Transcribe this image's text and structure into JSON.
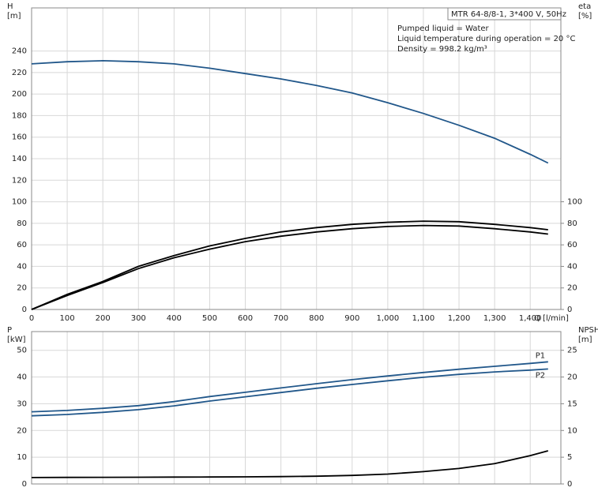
{
  "chart_data": [
    {
      "type": "line",
      "info_box": "MTR 64-8/8-1, 3*400 V, 50Hz",
      "notes": [
        "Pumped liquid = Water",
        "Liquid temperature during operation = 20 °C",
        "Density = 998.2 kg/m³"
      ],
      "y_label": [
        "H",
        "[m]"
      ],
      "y2_label": [
        "eta",
        "[%]"
      ],
      "x_label": "Q [l/min]",
      "x": [
        0,
        100,
        200,
        300,
        400,
        500,
        600,
        700,
        800,
        900,
        1000,
        1100,
        1200,
        1300,
        1400,
        1450
      ],
      "xlim": [
        0,
        1486
      ],
      "xticks": [
        0,
        100,
        200,
        300,
        400,
        500,
        600,
        700,
        800,
        900,
        {
          "value": 1000,
          "label": "1,000"
        },
        {
          "value": 1100,
          "label": "1,100"
        },
        {
          "value": 1200,
          "label": "1,200"
        },
        {
          "value": 1300,
          "label": "1,300"
        },
        {
          "value": 1400,
          "label": "1,400"
        }
      ],
      "ylim": [
        0,
        280
      ],
      "yticks": [
        0,
        20,
        40,
        60,
        80,
        100,
        120,
        140,
        160,
        180,
        200,
        220,
        240
      ],
      "y2lim": [
        0,
        280
      ],
      "y2ticks": [
        0,
        20,
        40,
        60,
        80,
        100
      ],
      "grid": true,
      "series": [
        {
          "color": "#21578a",
          "values": [
            228,
            230,
            231,
            230,
            228,
            224,
            219,
            214,
            208,
            201,
            192,
            182,
            171,
            159,
            144,
            136
          ]
        },
        {
          "color": "#000000",
          "axis": "y2",
          "values": [
            0,
            14,
            26,
            40,
            50,
            59,
            66,
            72,
            76,
            79,
            81,
            82,
            81.5,
            79,
            76,
            74
          ]
        },
        {
          "color": "#000000",
          "axis": "y2",
          "values": [
            0,
            13,
            25,
            38,
            48,
            56,
            63,
            68,
            72,
            75,
            77,
            78,
            77.5,
            75,
            72,
            70
          ]
        }
      ]
    },
    {
      "type": "line",
      "y_label": [
        "P",
        "[kW]"
      ],
      "y2_label": [
        "NPSH",
        "[m]"
      ],
      "x": [
        0,
        100,
        200,
        300,
        400,
        500,
        600,
        700,
        800,
        900,
        1000,
        1100,
        1200,
        1300,
        1400,
        1450
      ],
      "xlim": [
        0,
        1486
      ],
      "xticks": [
        0,
        100,
        200,
        300,
        400,
        500,
        600,
        700,
        800,
        900,
        1000,
        1100,
        1200,
        1300,
        1400
      ],
      "ylim": [
        0,
        57
      ],
      "yticks": [
        0,
        10,
        20,
        30,
        40,
        50
      ],
      "y2lim": [
        0,
        28.5
      ],
      "y2ticks": [
        0,
        5,
        10,
        15,
        20,
        25
      ],
      "grid": true,
      "series": [
        {
          "name": "P1",
          "color": "#21578a",
          "values": [
            27,
            27.5,
            28.3,
            29.3,
            30.8,
            32.7,
            34.3,
            35.9,
            37.5,
            39,
            40.4,
            41.7,
            42.9,
            44,
            45.1,
            45.7
          ]
        },
        {
          "name": "P2",
          "color": "#21578a",
          "values": [
            25.5,
            26,
            26.8,
            27.8,
            29.2,
            31,
            32.6,
            34.2,
            35.8,
            37.2,
            38.6,
            39.9,
            41,
            41.9,
            42.6,
            43
          ]
        },
        {
          "color": "#000000",
          "axis": "y2",
          "values": [
            1.2,
            1.22,
            1.24,
            1.26,
            1.28,
            1.3,
            1.33,
            1.38,
            1.45,
            1.6,
            1.85,
            2.3,
            2.9,
            3.8,
            5.3,
            6.2
          ]
        }
      ]
    }
  ]
}
